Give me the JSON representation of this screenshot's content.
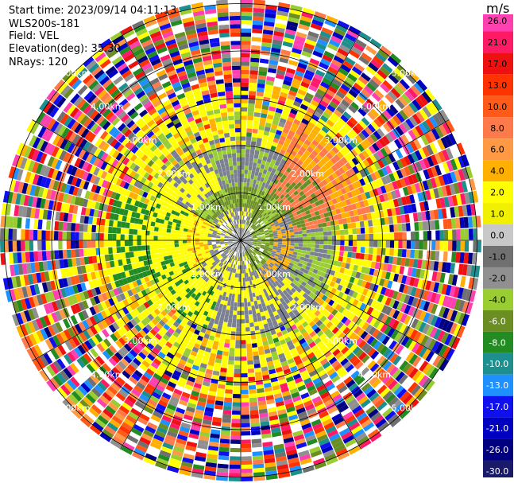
{
  "header": {
    "start_time": "Start time: 2023/09/14 04:11:13",
    "instrument": "WLS200s-181",
    "field": "Field: VEL",
    "elevation": "Elevation(deg): 35.30",
    "nrays": "NRays: 120"
  },
  "colorbar": {
    "unit": "m/s",
    "ticks": [
      "26.0",
      "21.0",
      "17.0",
      "13.0",
      "10.0",
      "8.0",
      "6.0",
      "4.0",
      "2.0",
      "1.0",
      "0.0",
      "-1.0",
      "-2.0",
      "-4.0",
      "-6.0",
      "-8.0",
      "-10.0",
      "-13.0",
      "-17.0",
      "-21.0",
      "-26.0",
      "-30.0"
    ],
    "colors": [
      "#ff40b0",
      "#ff1a66",
      "#ee1111",
      "#ff3300",
      "#ff5a1a",
      "#ff7a4a",
      "#ff9944",
      "#ffb000",
      "#ffff00",
      "#f0f000",
      "#c8c8c8",
      "#707070",
      "#909090",
      "#9acd32",
      "#6b8e23",
      "#228b22",
      "#1e8f8f",
      "#1e90ff",
      "#1010ee",
      "#0000c0",
      "#000080",
      "#1a1a6a",
      "#0a0a40"
    ]
  },
  "chart_data": {
    "type": "ppi",
    "field": "VEL",
    "units": "m/s",
    "elevation_deg": 35.3,
    "nrays": 120,
    "range_rings_km": [
      1.0,
      2.0,
      3.0,
      4.0,
      5.0
    ],
    "ring_labels": [
      "1.00km",
      "2.00km",
      "3.00km",
      "4.00km",
      "5.00km"
    ],
    "color_levels": [
      -30.0,
      -26.0,
      -21.0,
      -17.0,
      -13.0,
      -10.0,
      -8.0,
      -6.0,
      -4.0,
      -2.0,
      -1.0,
      0.0,
      1.0,
      2.0,
      4.0,
      6.0,
      8.0,
      10.0,
      13.0,
      17.0,
      21.0,
      26.0
    ],
    "radial_lines_deg": [
      0,
      30,
      60,
      90,
      120,
      150,
      180,
      210,
      240,
      270,
      300,
      330
    ]
  }
}
